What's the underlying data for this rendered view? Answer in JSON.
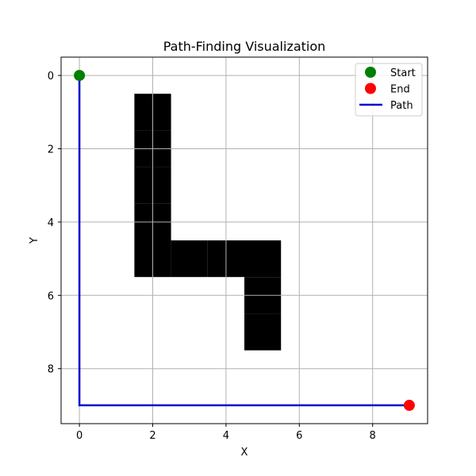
{
  "chart_data": {
    "type": "scatter",
    "title": "Path-Finding Visualization",
    "xlabel": "X",
    "ylabel": "Y",
    "xlim": [
      -0.5,
      9.5
    ],
    "ylim": [
      9.5,
      -0.5
    ],
    "y_inverted": true,
    "grid": true,
    "xticks": [
      0,
      2,
      4,
      6,
      8
    ],
    "yticks": [
      0,
      2,
      4,
      6,
      8
    ],
    "obstacles": [
      {
        "x": 2,
        "y": 1
      },
      {
        "x": 2,
        "y": 2
      },
      {
        "x": 2,
        "y": 3
      },
      {
        "x": 2,
        "y": 4
      },
      {
        "x": 2,
        "y": 5
      },
      {
        "x": 3,
        "y": 5
      },
      {
        "x": 4,
        "y": 5
      },
      {
        "x": 5,
        "y": 5
      },
      {
        "x": 5,
        "y": 6
      },
      {
        "x": 5,
        "y": 7
      }
    ],
    "start": {
      "x": 0,
      "y": 0
    },
    "end": {
      "x": 9,
      "y": 9
    },
    "path": [
      {
        "x": 0,
        "y": 0
      },
      {
        "x": 0,
        "y": 9
      },
      {
        "x": 9,
        "y": 9
      }
    ],
    "legend_position": "top-right",
    "series": [
      {
        "name": "Start",
        "kind": "marker",
        "color": "#008000"
      },
      {
        "name": "End",
        "kind": "marker",
        "color": "#ff0000"
      },
      {
        "name": "Path",
        "kind": "line",
        "color": "#0000cc"
      }
    ],
    "colors": {
      "obstacle": "#000000",
      "grid": "#b0b0b0",
      "start": "#008000",
      "end": "#ff0000",
      "path": "#0000cc"
    }
  }
}
